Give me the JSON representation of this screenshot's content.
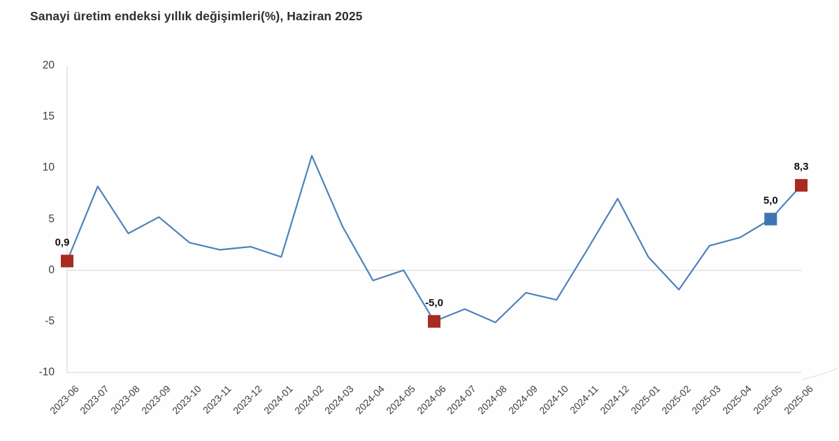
{
  "header": {
    "note": "static statistics chart, no toolbar or inputs visible"
  },
  "colors": {
    "line": "#4d82bc",
    "marker_red": "#a82a21",
    "marker_blue": "#3d77b3",
    "axis": "#dedede",
    "decor_curve": "#e9e9e9",
    "axis_text": "#3d3d3d",
    "title_text": "#2f2f2f",
    "data_label_text": "#111111",
    "background": "#fefefe"
  },
  "chart_data": {
    "type": "line",
    "title": "Sanayi üretim endeksi yıllık değişimleri(%), Haziran 2025",
    "x": [
      "2023-06",
      "2023-07",
      "2023-08",
      "2023-09",
      "2023-10",
      "2023-11",
      "2023-12",
      "2024-01",
      "2024-02",
      "2024-03",
      "2024-04",
      "2024-05",
      "2024-06",
      "2024-07",
      "2024-08",
      "2024-09",
      "2024-10",
      "2024-11",
      "2024-12",
      "2025-01",
      "2025-02",
      "2025-03",
      "2025-04",
      "2025-05",
      "2025-06"
    ],
    "series": [
      {
        "values": [
          0.9,
          8.2,
          3.6,
          5.2,
          2.7,
          2.0,
          2.3,
          1.3,
          11.2,
          4.3,
          -1.0,
          0.0,
          -5.0,
          -3.8,
          -5.1,
          -2.2,
          -2.9,
          2.0,
          7.0,
          1.3,
          -1.9,
          2.4,
          3.2,
          5.0,
          8.3
        ]
      }
    ],
    "ylim": [
      -10,
      20
    ],
    "yticks": [
      20,
      15,
      10,
      5,
      0,
      -5,
      -10
    ],
    "xlabel": "",
    "ylabel": "",
    "legend": "none",
    "grid": {
      "zero_line": true,
      "left_axis_line": true,
      "bottom_axis_line": true,
      "other_gridlines": false
    },
    "annotations": [
      {
        "x": "2023-06",
        "value": 0.9,
        "label": "0,9",
        "marker": "red",
        "dx": -7
      },
      {
        "x": "2024-06",
        "value": -5.0,
        "label": "-5,0",
        "marker": "red",
        "dx": 0
      },
      {
        "x": "2025-05",
        "value": 5.0,
        "label": "5,0",
        "marker": "blue",
        "dx": 0
      },
      {
        "x": "2025-06",
        "value": 8.3,
        "label": "8,3",
        "marker": "red",
        "dx": 0
      }
    ]
  }
}
